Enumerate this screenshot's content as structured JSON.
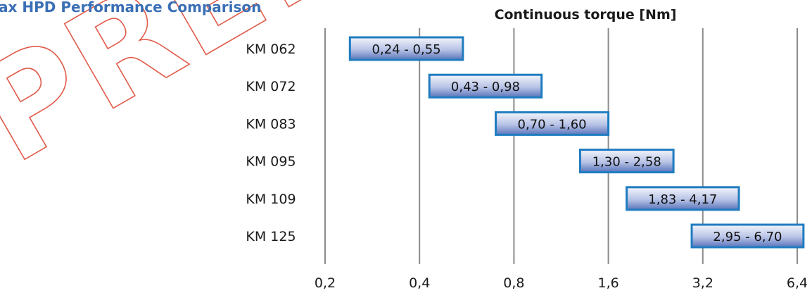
{
  "chart_data": {
    "type": "bar",
    "orientation": "horizontal-range",
    "title": "ax HPD Performance Comparison",
    "xlabel": "Continuous torque [Nm]",
    "x_scale": "log2",
    "xlim": [
      0.2,
      6.4
    ],
    "x_ticks": [
      0.2,
      0.4,
      0.8,
      1.6,
      3.2,
      6.4
    ],
    "x_tick_labels": [
      "0,2",
      "0,4",
      "0,8",
      "1,6",
      "3,2",
      "6,4"
    ],
    "grid": "vertical",
    "categories": [
      "KM 062",
      "KM 072",
      "KM 083",
      "KM 095",
      "KM 109",
      "KM 125"
    ],
    "ranges": [
      [
        0.24,
        0.55
      ],
      [
        0.43,
        0.98
      ],
      [
        0.7,
        1.6
      ],
      [
        1.3,
        2.58
      ],
      [
        1.83,
        4.17
      ],
      [
        2.95,
        6.7
      ]
    ],
    "labels": [
      "0,24 - 0,55",
      "0,43 - 0,98",
      "0,70 - 1,60",
      "1,30 - 2,58",
      "1,83 - 4,17",
      "2,95 - 6,70"
    ],
    "colors": {
      "bar_fill_light": "#eef1fa",
      "bar_fill_dark": "#5a74bb",
      "bar_border": "#1f7cc0",
      "grid": "#8c8c8c",
      "title": "#3a6fb5"
    }
  },
  "watermark": {
    "text": "PRELIM",
    "color": "#e05a4a"
  }
}
